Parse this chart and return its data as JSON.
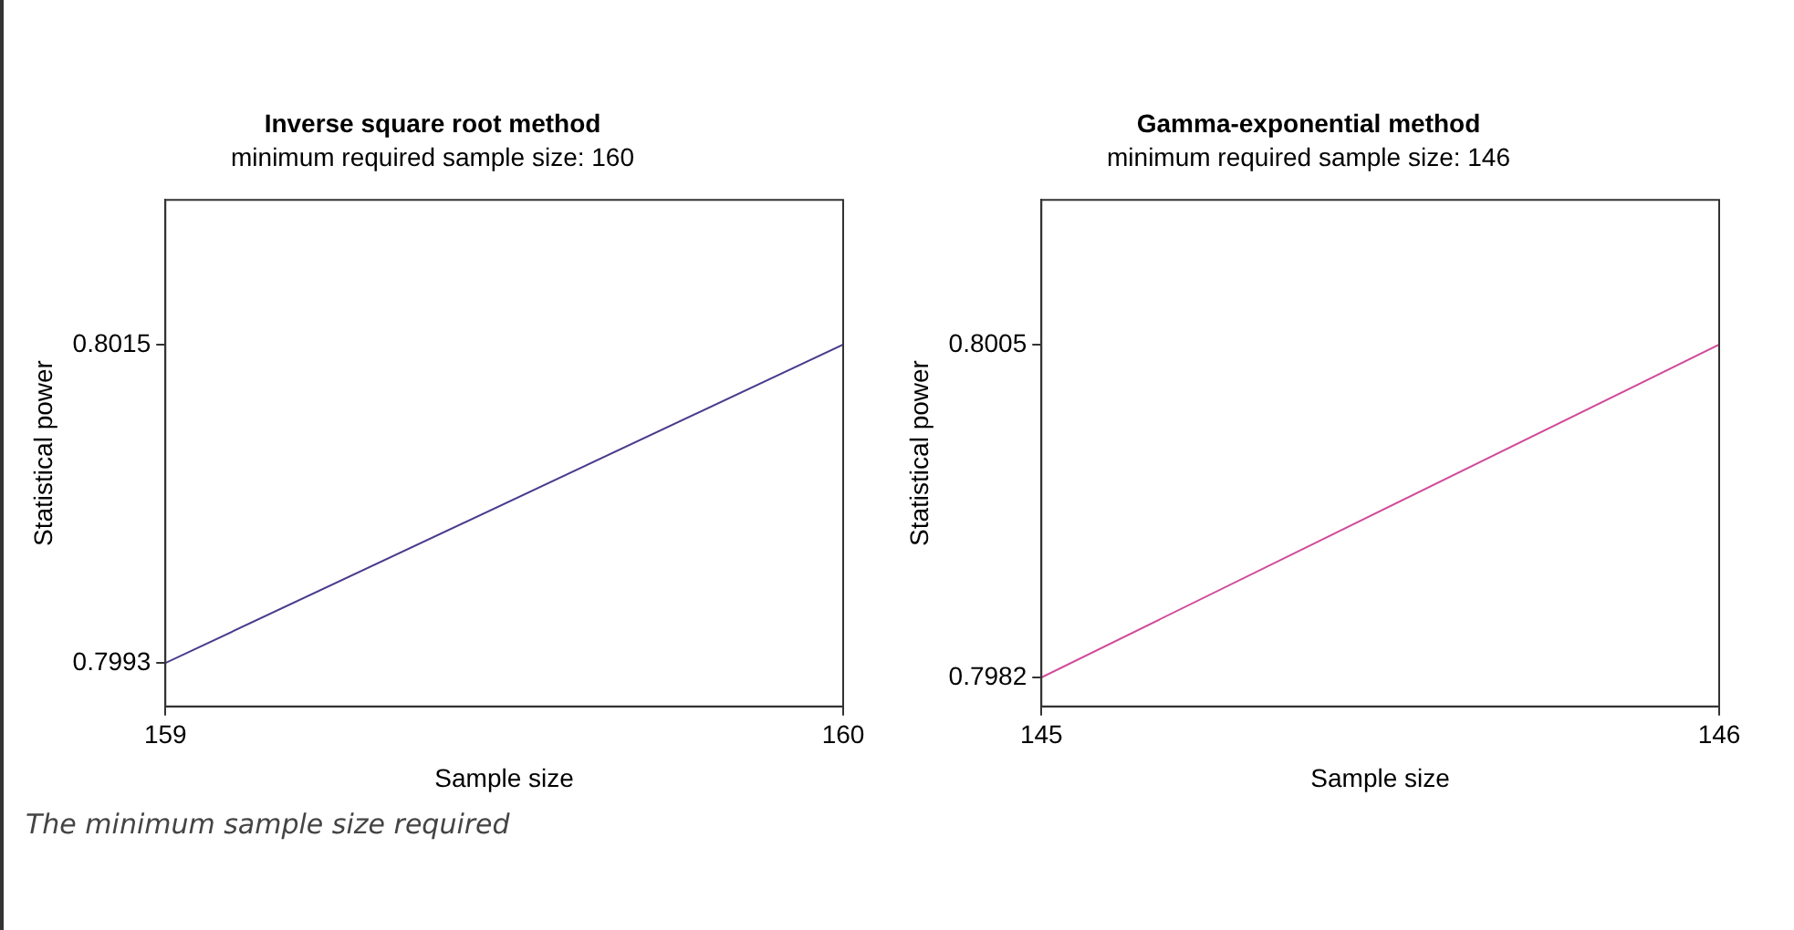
{
  "chart_data": [
    {
      "type": "line",
      "title": "Inverse square root method",
      "subtitle": "minimum required sample size: 160",
      "xlabel": "Sample size",
      "ylabel": "Statistical power",
      "x": [
        159,
        160
      ],
      "series": [
        {
          "color": "#4b3a8c",
          "values": [
            0.7993,
            0.8015
          ]
        }
      ],
      "xlim": [
        159,
        160
      ],
      "xticks": [
        159,
        160
      ],
      "ylim": [
        0.799,
        0.8025
      ],
      "yticks": [
        0.7993,
        0.8015
      ],
      "grid": false,
      "legend": false,
      "marker": "none",
      "line_style": "solid",
      "annotations": [
        "The minimum sample size required"
      ]
    },
    {
      "type": "line",
      "title": "Gamma-exponential method",
      "subtitle": "minimum required sample size: 146",
      "xlabel": "Sample size",
      "ylabel": "Statistical power",
      "x": [
        145,
        146
      ],
      "series": [
        {
          "color": "#d04a9a",
          "values": [
            0.7982,
            0.8005
          ]
        }
      ],
      "xlim": [
        145,
        146
      ],
      "xticks": [
        145,
        146
      ],
      "ylim": [
        0.798,
        0.8015
      ],
      "yticks": [
        0.7982,
        0.8005
      ],
      "grid": false,
      "legend": false,
      "marker": "none",
      "line_style": "solid"
    }
  ]
}
